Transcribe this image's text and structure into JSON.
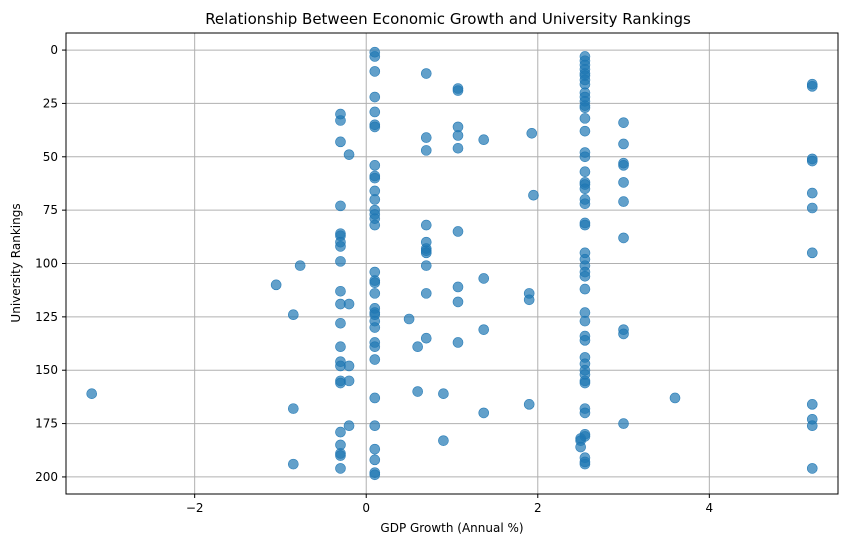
{
  "chart_data": {
    "type": "scatter",
    "title": "Relationship Between Economic Growth and University Rankings",
    "xlabel": "GDP Growth (Annual %)",
    "ylabel": "University Rankings",
    "xlim": [
      -3.5,
      5.5
    ],
    "ylim": [
      208,
      -8
    ],
    "y_inverted": true,
    "grid": true,
    "marker_color": "#1f77b4",
    "marker_alpha": 0.7,
    "x_ticks": [
      -2,
      0,
      2,
      4
    ],
    "x_tick_labels": [
      "−2",
      "0",
      "2",
      "4"
    ],
    "y_ticks": [
      0,
      25,
      50,
      75,
      100,
      125,
      150,
      175,
      200
    ],
    "y_tick_labels": [
      "0",
      "25",
      "50",
      "75",
      "100",
      "125",
      "150",
      "175",
      "200"
    ],
    "points": [
      [
        0.1,
        1
      ],
      [
        0.1,
        3
      ],
      [
        0.1,
        10
      ],
      [
        0.7,
        11
      ],
      [
        1.07,
        18
      ],
      [
        1.07,
        19
      ],
      [
        0.1,
        22
      ],
      [
        0.1,
        29
      ],
      [
        -0.3,
        30
      ],
      [
        -0.3,
        33
      ],
      [
        0.1,
        35
      ],
      [
        0.1,
        36
      ],
      [
        1.07,
        36
      ],
      [
        0.7,
        41
      ],
      [
        1.07,
        40
      ],
      [
        1.37,
        42
      ],
      [
        1.93,
        39
      ],
      [
        -0.3,
        43
      ],
      [
        0.7,
        47
      ],
      [
        1.07,
        46
      ],
      [
        -0.2,
        49
      ],
      [
        0.1,
        54
      ],
      [
        0.1,
        59
      ],
      [
        0.1,
        60
      ],
      [
        0.1,
        66
      ],
      [
        0.1,
        70
      ],
      [
        1.95,
        68
      ],
      [
        -0.3,
        73
      ],
      [
        0.1,
        75
      ],
      [
        0.1,
        77
      ],
      [
        0.1,
        79
      ],
      [
        0.1,
        82
      ],
      [
        0.7,
        82
      ],
      [
        1.07,
        85
      ],
      [
        -0.3,
        86
      ],
      [
        -0.3,
        87
      ],
      [
        -0.3,
        90
      ],
      [
        -0.3,
        92
      ],
      [
        0.7,
        90
      ],
      [
        0.7,
        93
      ],
      [
        0.7,
        94
      ],
      [
        0.7,
        95
      ],
      [
        -0.3,
        99
      ],
      [
        -0.77,
        101
      ],
      [
        0.7,
        101
      ],
      [
        -1.05,
        110
      ],
      [
        0.1,
        104
      ],
      [
        0.1,
        108
      ],
      [
        0.1,
        109
      ],
      [
        1.37,
        107
      ],
      [
        1.07,
        111
      ],
      [
        -0.3,
        113
      ],
      [
        -0.3,
        119
      ],
      [
        -0.2,
        119
      ],
      [
        0.1,
        114
      ],
      [
        0.7,
        114
      ],
      [
        1.07,
        118
      ],
      [
        1.9,
        114
      ],
      [
        1.9,
        117
      ],
      [
        -0.85,
        124
      ],
      [
        0.1,
        121
      ],
      [
        0.1,
        123
      ],
      [
        0.1,
        124
      ],
      [
        0.5,
        126
      ],
      [
        -0.3,
        128
      ],
      [
        0.1,
        127
      ],
      [
        0.1,
        130
      ],
      [
        1.37,
        131
      ],
      [
        0.7,
        135
      ],
      [
        1.07,
        137
      ],
      [
        0.1,
        137
      ],
      [
        0.1,
        139
      ],
      [
        0.6,
        139
      ],
      [
        -0.3,
        139
      ],
      [
        0.1,
        145
      ],
      [
        -0.3,
        146
      ],
      [
        -0.3,
        148
      ],
      [
        -0.2,
        148
      ],
      [
        -3.2,
        161
      ],
      [
        -0.3,
        155
      ],
      [
        -0.3,
        156
      ],
      [
        -0.2,
        155
      ],
      [
        0.1,
        163
      ],
      [
        0.6,
        160
      ],
      [
        0.9,
        161
      ],
      [
        1.9,
        166
      ],
      [
        1.37,
        170
      ],
      [
        -0.85,
        168
      ],
      [
        -0.3,
        179
      ],
      [
        -0.2,
        176
      ],
      [
        0.1,
        176
      ],
      [
        0.1,
        187
      ],
      [
        0.1,
        192
      ],
      [
        0.9,
        183
      ],
      [
        -0.3,
        185
      ],
      [
        -0.3,
        189
      ],
      [
        -0.3,
        190
      ],
      [
        -0.85,
        194
      ],
      [
        -0.3,
        196
      ],
      [
        0.1,
        198
      ],
      [
        0.1,
        199
      ],
      [
        2.55,
        3
      ],
      [
        2.55,
        5
      ],
      [
        2.55,
        7
      ],
      [
        2.55,
        9
      ],
      [
        2.55,
        11
      ],
      [
        2.55,
        12
      ],
      [
        2.55,
        14
      ],
      [
        2.55,
        16
      ],
      [
        2.55,
        20
      ],
      [
        2.55,
        22
      ],
      [
        2.55,
        24
      ],
      [
        2.55,
        26
      ],
      [
        2.55,
        27
      ],
      [
        2.55,
        32
      ],
      [
        2.55,
        38
      ],
      [
        2.55,
        48
      ],
      [
        2.55,
        50
      ],
      [
        2.55,
        57
      ],
      [
        2.55,
        62
      ],
      [
        2.55,
        63
      ],
      [
        2.55,
        65
      ],
      [
        2.55,
        70
      ],
      [
        2.55,
        72
      ],
      [
        2.55,
        81
      ],
      [
        2.55,
        82
      ],
      [
        2.55,
        95
      ],
      [
        2.55,
        98
      ],
      [
        2.55,
        101
      ],
      [
        2.55,
        104
      ],
      [
        2.55,
        106
      ],
      [
        2.55,
        112
      ],
      [
        2.55,
        123
      ],
      [
        2.55,
        127
      ],
      [
        2.55,
        134
      ],
      [
        2.55,
        136
      ],
      [
        2.55,
        144
      ],
      [
        2.55,
        147
      ],
      [
        2.55,
        150
      ],
      [
        2.55,
        152
      ],
      [
        2.55,
        155
      ],
      [
        2.55,
        156
      ],
      [
        2.55,
        168
      ],
      [
        2.55,
        170
      ],
      [
        2.55,
        180
      ],
      [
        2.55,
        181
      ],
      [
        2.5,
        182
      ],
      [
        2.5,
        183
      ],
      [
        2.5,
        186
      ],
      [
        2.55,
        191
      ],
      [
        2.55,
        193
      ],
      [
        2.55,
        194
      ],
      [
        3.0,
        34
      ],
      [
        3.0,
        44
      ],
      [
        3.0,
        53
      ],
      [
        3.0,
        54
      ],
      [
        3.0,
        62
      ],
      [
        3.0,
        71
      ],
      [
        3.0,
        88
      ],
      [
        3.0,
        131
      ],
      [
        3.0,
        133
      ],
      [
        3.0,
        175
      ],
      [
        3.6,
        163
      ],
      [
        5.2,
        16
      ],
      [
        5.2,
        17
      ],
      [
        5.2,
        51
      ],
      [
        5.2,
        52
      ],
      [
        5.2,
        67
      ],
      [
        5.2,
        74
      ],
      [
        5.2,
        95
      ],
      [
        5.2,
        166
      ],
      [
        5.2,
        173
      ],
      [
        5.2,
        176
      ],
      [
        5.2,
        196
      ]
    ]
  }
}
